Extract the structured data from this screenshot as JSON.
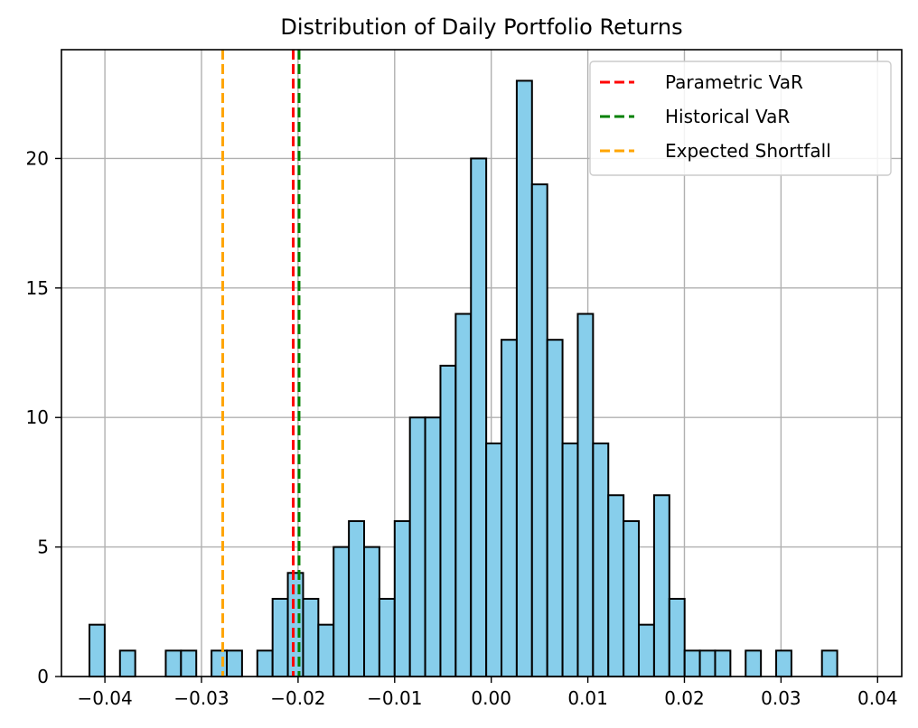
{
  "chart_data": {
    "type": "bar",
    "title": "Distribution of Daily Portfolio Returns",
    "xlabel": "",
    "ylabel": "",
    "xlim": [
      -0.0445,
      0.0425
    ],
    "ylim": [
      0,
      24.2
    ],
    "grid": true,
    "legend_position": "top-right",
    "bar_color": "#87ceeb",
    "bar_edge_color": "#000000",
    "bin_width": 0.00158,
    "bin_start": -0.0416,
    "counts": [
      2,
      0,
      1,
      0,
      0,
      1,
      1,
      0,
      1,
      1,
      0,
      1,
      3,
      4,
      3,
      2,
      5,
      6,
      5,
      3,
      6,
      10,
      10,
      12,
      14,
      20,
      9,
      13,
      23,
      19,
      13,
      9,
      14,
      9,
      7,
      6,
      2,
      7,
      3,
      1,
      1,
      1,
      0,
      1,
      0,
      1,
      0,
      0,
      1
    ],
    "x_ticks": [
      -0.04,
      -0.03,
      -0.02,
      -0.01,
      0.0,
      0.01,
      0.02,
      0.03,
      0.04
    ],
    "x_tick_labels": [
      "−0.04",
      "−0.03",
      "−0.02",
      "−0.01",
      "0.00",
      "0.01",
      "0.02",
      "0.03",
      "0.04"
    ],
    "y_ticks": [
      0,
      5,
      10,
      15,
      20
    ],
    "y_tick_labels": [
      "0",
      "5",
      "10",
      "15",
      "20"
    ],
    "vlines": [
      {
        "name": "Parametric VaR",
        "x": -0.0205,
        "color": "#ff0000"
      },
      {
        "name": "Historical VaR",
        "x": -0.0199,
        "color": "#008000"
      },
      {
        "name": "Expected Shortfall",
        "x": -0.0278,
        "color": "#ffa500"
      }
    ]
  }
}
